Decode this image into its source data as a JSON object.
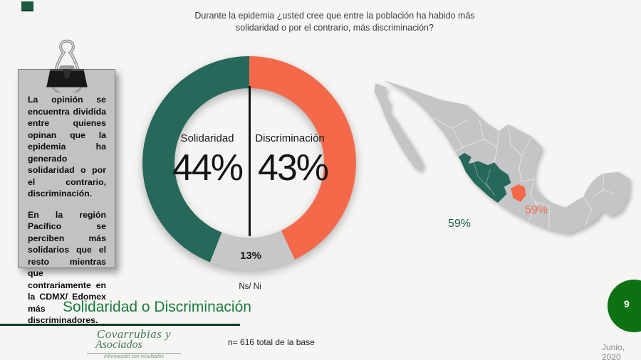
{
  "slide": {
    "question_line1": "Durante la epidemia ¿usted cree que entre la población ha habido más",
    "question_line2": "solidaridad o por el contrario, más discriminación?",
    "section_title": "Solidaridad o Discriminación",
    "base_note": "n= 616 total de la base",
    "date": "Junio, 2020",
    "page_number": "9",
    "accent_green": "#1B7A3D",
    "badge_green": "#0C7110"
  },
  "note": {
    "paragraph1": "La opinión se encuentra dividida entre quienes opinan que la epidemia ha generado solidaridad o por el contrario, discriminación.",
    "paragraph2": "En la región Pacífico se perciben más solidarios que el resto mientras que contrariamente en la CDMX/ Edomex más discriminadores."
  },
  "logo": {
    "line1": "Covarrubias y",
    "line2": "Asociados",
    "tagline": "Información con resultados"
  },
  "chart_data": [
    {
      "type": "pie",
      "donut": true,
      "title": "Durante la epidemia ¿usted cree que entre la población ha habido más solidaridad o por el contrario, más discriminación?",
      "start_angle_deg": -90,
      "direction": "clockwise",
      "slices": [
        {
          "label": "Discriminación",
          "value": 43,
          "display": "43%",
          "color": "#F5694B"
        },
        {
          "label": "Ns/ Ni",
          "value": 13,
          "display": "13%",
          "color": "#C7C7C7"
        },
        {
          "label": "Solidaridad",
          "value": 44,
          "display": "44%",
          "color": "#26685A"
        }
      ]
    },
    {
      "type": "map",
      "region": "México",
      "base_color": "#C3C5C7",
      "border_color": "#FFFFFF",
      "highlights": [
        {
          "region": "Pacífico",
          "value": 59,
          "display": "59%",
          "color": "#26685A",
          "label_color": "#1C5B4D"
        },
        {
          "region": "CDMX/ Edomex",
          "value": 59,
          "display": "59%",
          "color": "#F5694B",
          "label_color": "#F5694B"
        }
      ]
    }
  ]
}
